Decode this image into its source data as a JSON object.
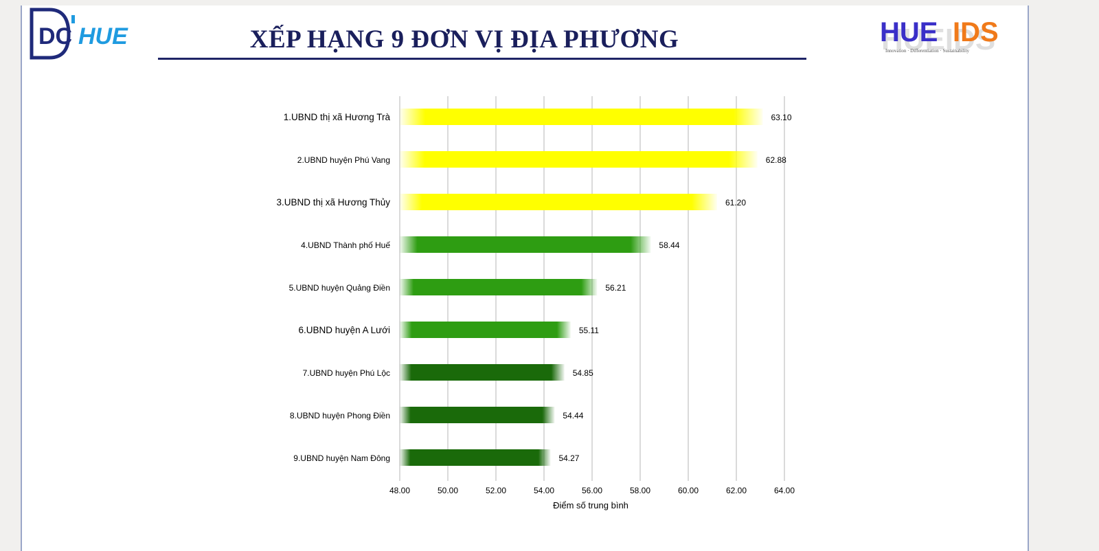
{
  "header": {
    "title": "XẾP HẠNG 9 ĐƠN VỊ ĐỊA PHƯƠNG",
    "logo_left_text": "DCIHUE",
    "logo_right_text": "HUEIDS",
    "logo_right_tagline": "Innovation · Differentiation · Sustainability"
  },
  "colors": {
    "title": "#1a1f5c",
    "yellow": "#ffff00",
    "green_mid": "#2e9d12",
    "green_dark": "#1a6a0a",
    "grid": "#b5b5b5"
  },
  "chart_data": {
    "type": "bar",
    "orientation": "horizontal",
    "title": "",
    "xlabel": "Điểm số trung bình",
    "ylabel": "",
    "xlim": [
      48,
      64
    ],
    "ticks": [
      "48.00",
      "50.00",
      "52.00",
      "54.00",
      "56.00",
      "58.00",
      "60.00",
      "62.00",
      "64.00"
    ],
    "grid": true,
    "categories": [
      "1.UBND thị xã Hương Trà",
      "2.UBND huyện Phú Vang",
      "3.UBND thị xã Hương Thủy",
      "4.UBND Thành phố Huế",
      "5.UBND huyện Quảng Điền",
      "6.UBND huyện A Lưới",
      "7.UBND huyện Phú Lộc",
      "8.UBND huyện Phong Điền",
      "9.UBND huyện Nam Đông"
    ],
    "values": [
      63.1,
      62.88,
      61.2,
      58.44,
      56.21,
      55.11,
      54.85,
      54.44,
      54.27
    ],
    "value_labels": [
      "63.10",
      "62.88",
      "61.20",
      "58.44",
      "56.21",
      "55.11",
      "54.85",
      "54.44",
      "54.27"
    ],
    "bar_colors": [
      "#ffff00",
      "#ffff00",
      "#ffff00",
      "#2e9d12",
      "#2e9d12",
      "#2e9d12",
      "#1a6a0a",
      "#1a6a0a",
      "#1a6a0a"
    ]
  }
}
